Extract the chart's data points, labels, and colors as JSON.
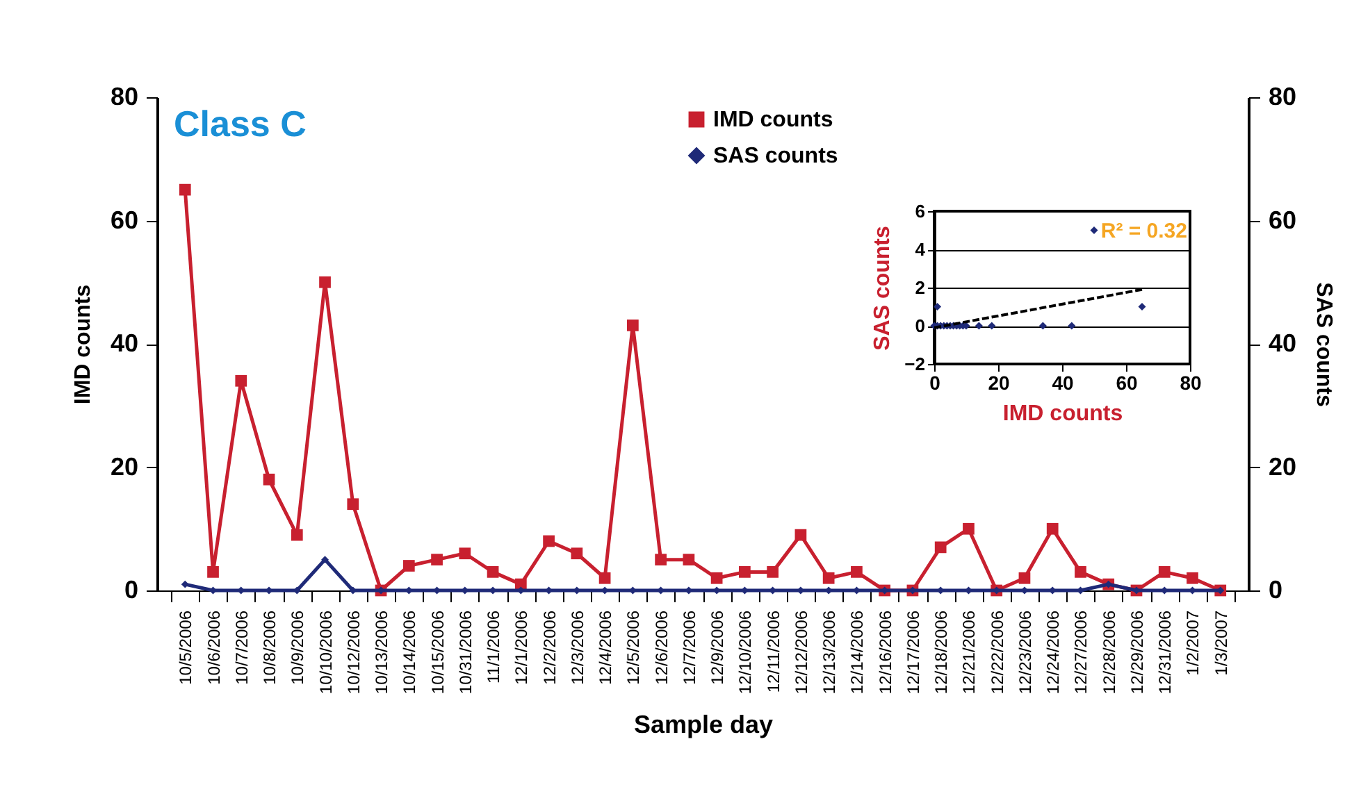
{
  "chart_data": [
    {
      "type": "line",
      "title": "Class C",
      "xlabel": "Sample day",
      "ylabel": "IMD counts",
      "y2label": "SAS counts",
      "categories": [
        "10/5/2006",
        "10/6/2006",
        "10/7/2006",
        "10/8/2006",
        "10/9/2006",
        "10/10/2006",
        "10/12/2006",
        "10/13/2006",
        "10/14/2006",
        "10/15/2006",
        "10/31/2006",
        "11/1/2006",
        "12/1/2006",
        "12/2/2006",
        "12/3/2006",
        "12/4/2006",
        "12/5/2006",
        "12/6/2006",
        "12/7/2006",
        "12/9/2006",
        "12/10/2006",
        "12/11/2006",
        "12/12/2006",
        "12/13/2006",
        "12/14/2006",
        "12/16/2006",
        "12/17/2006",
        "12/18/2006",
        "12/21/2006",
        "12/22/2006",
        "12/23/2006",
        "12/24/2006",
        "12/27/2006",
        "12/28/2006",
        "12/29/2006",
        "12/31/2006",
        "1/2/2007",
        "1/3/2007"
      ],
      "series": [
        {
          "name": "IMD counts",
          "color": "#c8202f",
          "marker": "square",
          "values": [
            65,
            3,
            34,
            18,
            9,
            50,
            14,
            0,
            4,
            5,
            6,
            3,
            1,
            8,
            6,
            2,
            43,
            5,
            5,
            2,
            3,
            3,
            9,
            2,
            3,
            0,
            0,
            7,
            10,
            0,
            2,
            10,
            3,
            1,
            0,
            3,
            2,
            0
          ]
        },
        {
          "name": "SAS counts",
          "color": "#1f2a78",
          "marker": "diamond",
          "axis": "y2",
          "values": [
            1,
            0,
            0,
            0,
            0,
            5,
            0,
            0,
            0,
            0,
            0,
            0,
            0,
            0,
            0,
            0,
            0,
            0,
            0,
            0,
            0,
            0,
            0,
            0,
            0,
            0,
            0,
            0,
            0,
            0,
            0,
            0,
            0,
            1,
            0,
            0,
            0,
            0
          ]
        }
      ],
      "ylim": [
        0,
        80
      ],
      "yticks": [
        0,
        20,
        40,
        60,
        80
      ],
      "y2lim": [
        0,
        80
      ],
      "y2ticks": [
        0,
        20,
        40,
        60,
        80
      ],
      "legend": "top"
    },
    {
      "type": "scatter",
      "xlabel": "IMD counts",
      "ylabel": "SAS counts",
      "xlim": [
        0,
        80
      ],
      "xticks": [
        0,
        20,
        40,
        60,
        80
      ],
      "ylim": [
        -2,
        6
      ],
      "yticks": [
        -2,
        0,
        2,
        4,
        6
      ],
      "grid": "y",
      "series": [
        {
          "type": "scatter",
          "color": "#1f2a78",
          "marker": "diamond",
          "x": [
            65,
            3,
            34,
            18,
            9,
            50,
            14,
            0,
            4,
            5,
            6,
            1,
            8,
            2,
            43,
            7,
            10,
            1
          ],
          "values": [
            1,
            0,
            0,
            0,
            0,
            5,
            0,
            0,
            0,
            0,
            0,
            0,
            0,
            0,
            0,
            0,
            0,
            1
          ]
        },
        {
          "type": "line",
          "color": "#000000",
          "line_style": "dashed",
          "x": [
            0,
            65
          ],
          "values": [
            -0.1,
            1.9
          ]
        }
      ],
      "annotations": [
        "R² = 0.32"
      ]
    }
  ]
}
